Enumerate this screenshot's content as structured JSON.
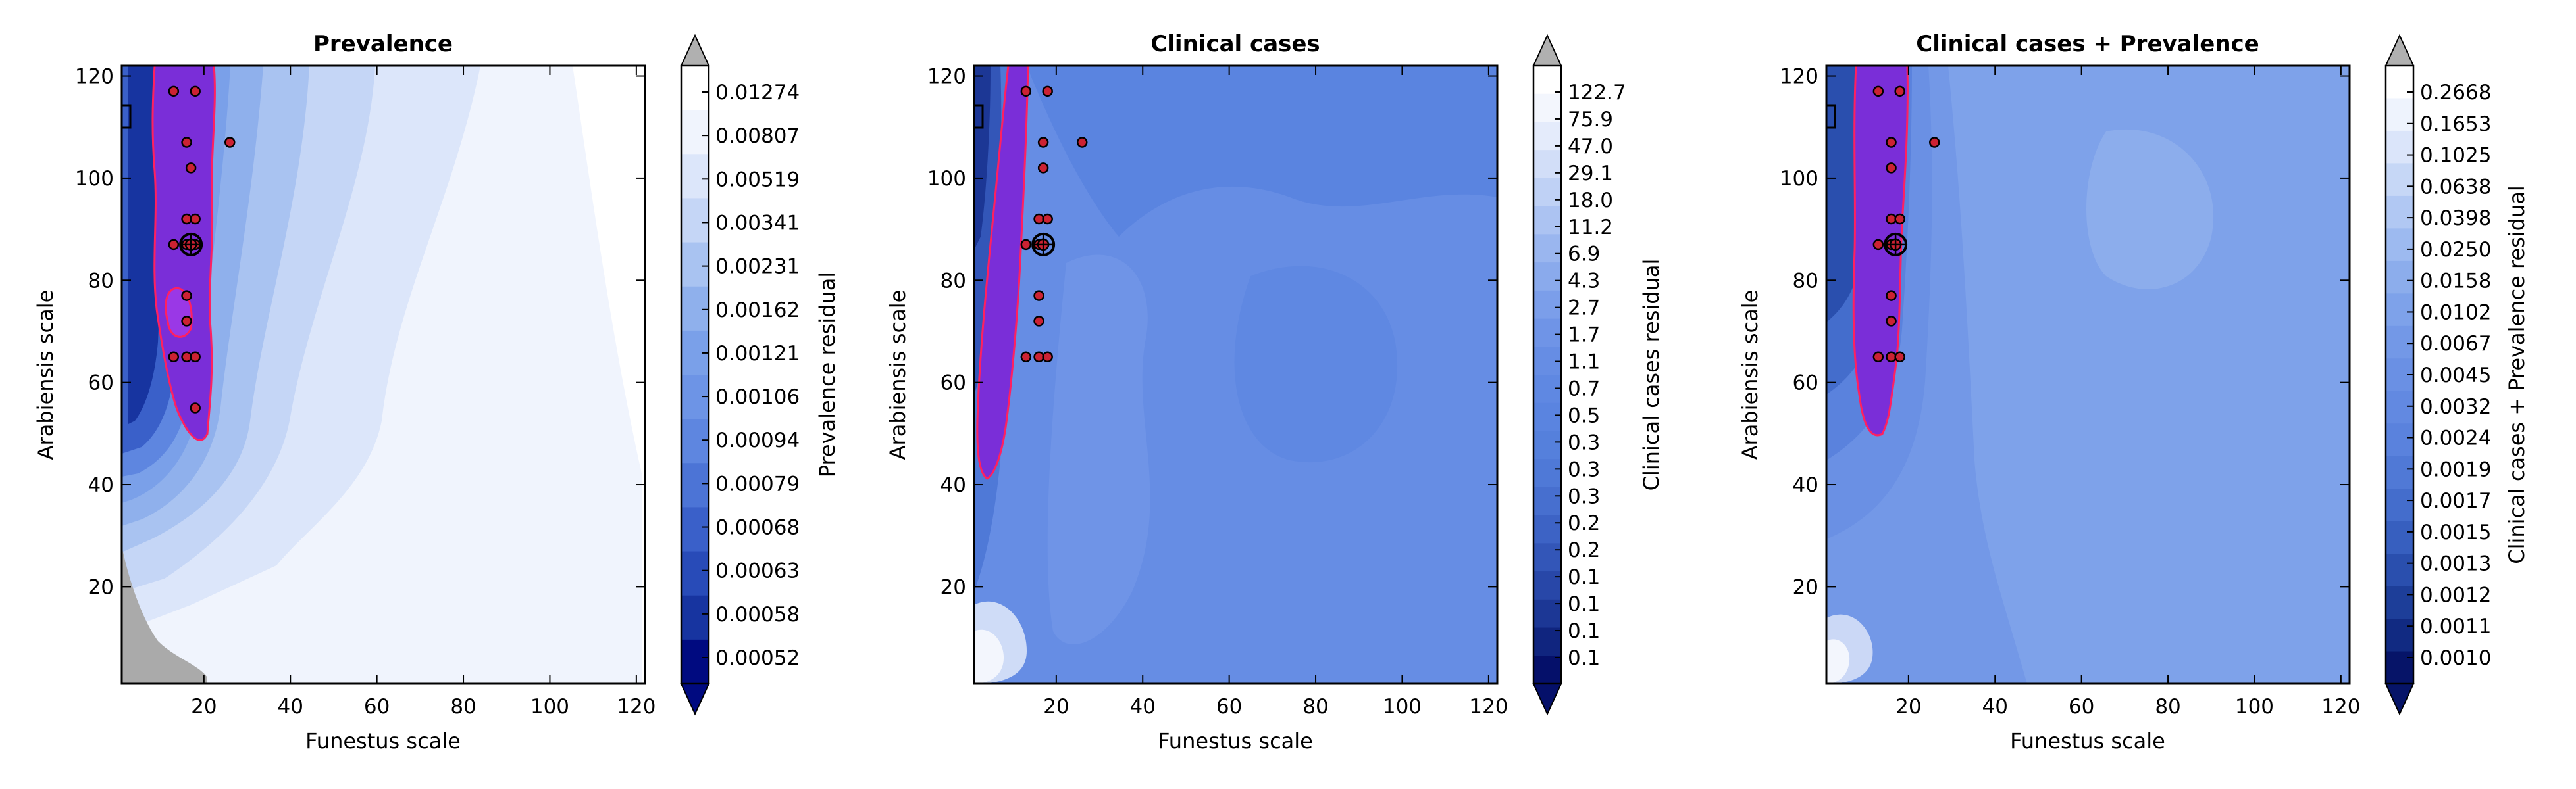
{
  "chart_data": [
    {
      "type": "heatmap",
      "title": "Prevalence",
      "xlabel": "Funestus scale",
      "ylabel": "Arabiensis scale",
      "xlim": [
        1,
        122
      ],
      "ylim": [
        1,
        122
      ],
      "xticks": [
        "20",
        "40",
        "60",
        "80",
        "100",
        "120"
      ],
      "yticks": [
        "20",
        "40",
        "60",
        "80",
        "100",
        "120"
      ],
      "colorbar_label": "Prevalence residual",
      "colorbar_ticks": [
        "0.01274",
        "0.00807",
        "0.00519",
        "0.00341",
        "0.00231",
        "0.00162",
        "0.00121",
        "0.00106",
        "0.00094",
        "0.00079",
        "0.00068",
        "0.00063",
        "0.00058",
        "0.00052"
      ],
      "colorscale": [
        "#ffffff",
        "#f0f4fd",
        "#dce6fa",
        "#c5d6f6",
        "#a9c3f1",
        "#8fb0ec",
        "#7aa0e9",
        "#6d94e6",
        "#5e86e0",
        "#4c74d6",
        "#3a60c9",
        "#284bb8",
        "#1734a0",
        "#000a80"
      ],
      "points": [
        [
          13,
          117
        ],
        [
          18,
          117
        ],
        [
          16,
          107
        ],
        [
          26,
          107
        ],
        [
          17,
          102
        ],
        [
          16,
          92
        ],
        [
          18,
          92
        ],
        [
          13,
          87
        ],
        [
          16,
          87
        ],
        [
          18,
          87
        ],
        [
          16,
          77
        ],
        [
          16,
          72
        ],
        [
          13,
          65
        ],
        [
          16,
          65
        ],
        [
          18,
          65
        ],
        [
          18,
          55
        ]
      ],
      "highlight_point": [
        17,
        87
      ]
    },
    {
      "type": "heatmap",
      "title": "Clinical cases",
      "xlabel": "Funestus scale",
      "ylabel": "Arabiensis scale",
      "xlim": [
        1,
        122
      ],
      "ylim": [
        1,
        122
      ],
      "xticks": [
        "20",
        "40",
        "60",
        "80",
        "100",
        "120"
      ],
      "yticks": [
        "20",
        "40",
        "60",
        "80",
        "100",
        "120"
      ],
      "colorbar_label": "Clinical cases residual",
      "colorbar_ticks": [
        "122.7",
        "75.9",
        "47.0",
        "29.1",
        "18.0",
        "11.2",
        "6.9",
        "4.3",
        "2.7",
        "1.7",
        "1.1",
        "0.7",
        "0.5",
        "0.3",
        "0.3",
        "0.3",
        "0.2",
        "0.2",
        "0.1",
        "0.1",
        "0.1",
        "0.1"
      ],
      "colorscale": [
        "#ffffff",
        "#f3f6fd",
        "#e4ebfb",
        "#d2def8",
        "#bfd1f5",
        "#acc3f2",
        "#9ab6ef",
        "#8aaaec",
        "#7b9eea",
        "#6f94e7",
        "#668de4",
        "#5f88e2",
        "#5a84e0",
        "#5580dc",
        "#4f79d7",
        "#476fcf",
        "#3d63c5",
        "#3356b8",
        "#2847a8",
        "#1c3795",
        "#10257f",
        "#05106a"
      ],
      "points": [
        [
          13,
          117
        ],
        [
          18,
          117
        ],
        [
          26,
          107
        ],
        [
          17,
          107
        ],
        [
          17,
          102
        ],
        [
          16,
          92
        ],
        [
          18,
          92
        ],
        [
          13,
          87
        ],
        [
          16,
          87
        ],
        [
          13,
          65
        ],
        [
          16,
          65
        ],
        [
          18,
          65
        ],
        [
          16,
          77
        ],
        [
          16,
          72
        ]
      ],
      "highlight_point": [
        17,
        87
      ]
    },
    {
      "type": "heatmap",
      "title": "Clinical cases + Prevalence",
      "xlabel": "Funestus scale",
      "ylabel": "Arabiensis scale",
      "xlim": [
        1,
        122
      ],
      "ylim": [
        1,
        122
      ],
      "xticks": [
        "20",
        "40",
        "60",
        "80",
        "100",
        "120"
      ],
      "yticks": [
        "20",
        "40",
        "60",
        "80",
        "100",
        "120"
      ],
      "colorbar_label": "Clinical cases + Prevalence residual",
      "colorbar_ticks": [
        "0.2668",
        "0.1653",
        "0.1025",
        "0.0638",
        "0.0398",
        "0.0250",
        "0.0158",
        "0.0102",
        "0.0067",
        "0.0045",
        "0.0032",
        "0.0024",
        "0.0019",
        "0.0017",
        "0.0015",
        "0.0013",
        "0.0012",
        "0.0011",
        "0.0010"
      ],
      "colorscale": [
        "#ffffff",
        "#eef3fd",
        "#dbe5fa",
        "#c6d7f6",
        "#b1c8f3",
        "#9dbaf0",
        "#8cadec",
        "#7ea2ea",
        "#7398e7",
        "#6a90e4",
        "#6289e1",
        "#5a82dd",
        "#5079d6",
        "#446dcc",
        "#375fbf",
        "#2a4fae",
        "#1d3e99",
        "#112a82",
        "#061468"
      ],
      "points": [
        [
          13,
          117
        ],
        [
          18,
          117
        ],
        [
          26,
          107
        ],
        [
          16,
          107
        ],
        [
          16,
          102
        ],
        [
          16,
          92
        ],
        [
          18,
          92
        ],
        [
          13,
          87
        ],
        [
          16,
          87
        ],
        [
          16,
          77
        ],
        [
          16,
          72
        ],
        [
          13,
          65
        ],
        [
          16,
          65
        ],
        [
          18,
          65
        ]
      ],
      "highlight_point": [
        17,
        87
      ]
    }
  ]
}
